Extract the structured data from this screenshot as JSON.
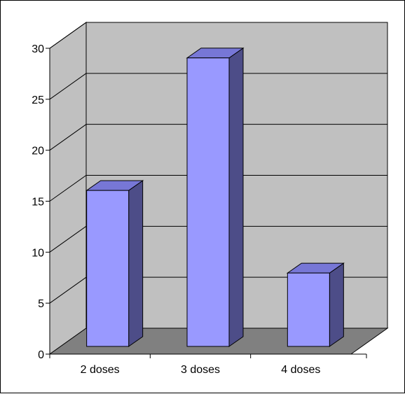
{
  "chart_data": {
    "type": "bar",
    "style": "3d-column",
    "categories": [
      "2 doses",
      "3 doses",
      "4 doses"
    ],
    "values": [
      15.3,
      28.3,
      7.2
    ],
    "ylim": [
      0,
      30
    ],
    "yticks": [
      "0",
      "5",
      "10",
      "15",
      "20",
      "25",
      "30"
    ],
    "grid": true,
    "legend": "none",
    "colors": {
      "bar_front": "#9999ff",
      "bar_side": "#4d4d88",
      "bar_top": "#7777d6",
      "wall": "#c0c0c0",
      "floor": "#808080",
      "gridline": "#000000"
    }
  }
}
